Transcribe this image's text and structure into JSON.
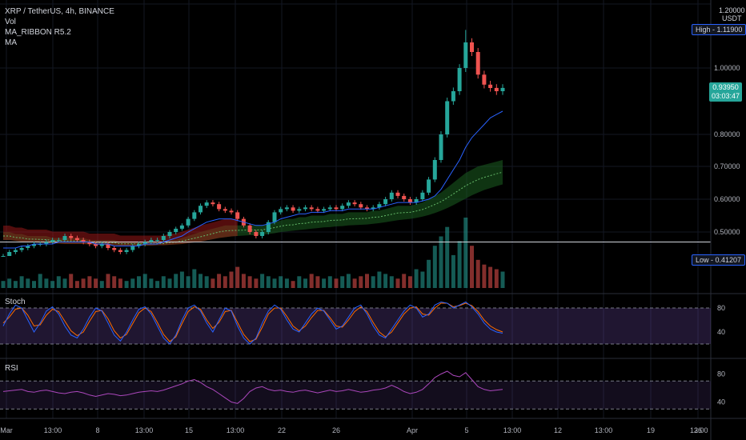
{
  "chart_data": [
    {
      "type": "candlestick",
      "title": "XRP / TetherUS, 4h, BINANCE",
      "indicators": [
        "Vol",
        "MA_RIBBON R5.2",
        "MA"
      ],
      "unit": "USDT",
      "high_label": "High",
      "high_value": "1.11900",
      "low_label": "Low",
      "low_value": "0.41207",
      "last_price": "0.93950",
      "countdown": "03:03:47",
      "horizontal_line": 0.475,
      "y_ticks": [
        "1.20000",
        "1.00000",
        "0.80000",
        "0.70000",
        "0.60000",
        "0.50000"
      ],
      "y_tick_values": [
        1.2,
        1.0,
        0.8,
        0.7,
        0.6,
        0.5
      ],
      "x_ticks": [
        "Mar",
        "13:00",
        "8",
        "13:00",
        "15",
        "13:00",
        "22",
        "26",
        "Apr",
        "5",
        "13:00",
        "12",
        "13:00",
        "19",
        "26",
        "13:00"
      ],
      "close_series": [
        0.44,
        0.45,
        0.455,
        0.46,
        0.465,
        0.47,
        0.47,
        0.475,
        0.48,
        0.48,
        0.49,
        0.485,
        0.48,
        0.475,
        0.47,
        0.465,
        0.47,
        0.46,
        0.455,
        0.45,
        0.455,
        0.465,
        0.47,
        0.475,
        0.48,
        0.48,
        0.49,
        0.5,
        0.51,
        0.52,
        0.54,
        0.56,
        0.58,
        0.59,
        0.585,
        0.57,
        0.565,
        0.56,
        0.54,
        0.52,
        0.5,
        0.49,
        0.5,
        0.53,
        0.56,
        0.57,
        0.575,
        0.565,
        0.57,
        0.575,
        0.57,
        0.565,
        0.57,
        0.575,
        0.57,
        0.58,
        0.59,
        0.585,
        0.575,
        0.57,
        0.575,
        0.585,
        0.6,
        0.62,
        0.61,
        0.6,
        0.59,
        0.6,
        0.62,
        0.66,
        0.72,
        0.8,
        0.9,
        0.93,
        1.0,
        1.08,
        1.05,
        0.98,
        0.95,
        0.94,
        0.93,
        0.94
      ],
      "volume_series": [
        3,
        4,
        3,
        5,
        4,
        3,
        6,
        4,
        3,
        5,
        4,
        6,
        3,
        4,
        5,
        4,
        3,
        6,
        5,
        4,
        3,
        4,
        5,
        6,
        4,
        3,
        5,
        4,
        6,
        7,
        5,
        8,
        6,
        5,
        4,
        6,
        5,
        7,
        9,
        6,
        5,
        4,
        6,
        5,
        4,
        5,
        4,
        3,
        5,
        4,
        6,
        5,
        4,
        5,
        4,
        5,
        6,
        4,
        5,
        6,
        5,
        7,
        6,
        5,
        4,
        6,
        5,
        8,
        7,
        12,
        18,
        22,
        26,
        14,
        20,
        30,
        18,
        12,
        10,
        9,
        8,
        7
      ],
      "ma_series": [
        0.46,
        0.46,
        0.46,
        0.465,
        0.465,
        0.47,
        0.47,
        0.47,
        0.47,
        0.475,
        0.475,
        0.475,
        0.475,
        0.475,
        0.475,
        0.47,
        0.47,
        0.47,
        0.465,
        0.465,
        0.465,
        0.465,
        0.465,
        0.47,
        0.47,
        0.47,
        0.475,
        0.48,
        0.485,
        0.49,
        0.5,
        0.51,
        0.52,
        0.53,
        0.535,
        0.54,
        0.54,
        0.54,
        0.535,
        0.53,
        0.525,
        0.52,
        0.52,
        0.525,
        0.53,
        0.54,
        0.545,
        0.55,
        0.555,
        0.555,
        0.56,
        0.56,
        0.56,
        0.565,
        0.565,
        0.565,
        0.57,
        0.57,
        0.57,
        0.57,
        0.57,
        0.575,
        0.58,
        0.585,
        0.59,
        0.59,
        0.59,
        0.59,
        0.595,
        0.6,
        0.61,
        0.63,
        0.66,
        0.69,
        0.72,
        0.76,
        0.79,
        0.81,
        0.83,
        0.85,
        0.86,
        0.87
      ],
      "ribbon_upper": [
        0.5,
        0.5,
        0.495,
        0.495,
        0.49,
        0.49,
        0.49,
        0.49,
        0.485,
        0.485,
        0.485,
        0.485,
        0.485,
        0.485,
        0.48,
        0.48,
        0.48,
        0.48,
        0.48,
        0.475,
        0.475,
        0.475,
        0.475,
        0.475,
        0.475,
        0.475,
        0.475,
        0.48,
        0.48,
        0.485,
        0.49,
        0.495,
        0.5,
        0.505,
        0.51,
        0.515,
        0.52,
        0.52,
        0.52,
        0.52,
        0.52,
        0.52,
        0.52,
        0.525,
        0.53,
        0.535,
        0.54,
        0.54,
        0.545,
        0.545,
        0.55,
        0.55,
        0.55,
        0.555,
        0.555,
        0.555,
        0.56,
        0.56,
        0.56,
        0.56,
        0.565,
        0.565,
        0.57,
        0.575,
        0.58,
        0.58,
        0.58,
        0.585,
        0.59,
        0.6,
        0.61,
        0.62,
        0.635,
        0.65,
        0.665,
        0.68,
        0.69,
        0.7,
        0.705,
        0.71,
        0.715,
        0.72
      ],
      "ribbon_lower": [
        0.48,
        0.48,
        0.478,
        0.476,
        0.475,
        0.474,
        0.473,
        0.472,
        0.472,
        0.471,
        0.47,
        0.47,
        0.47,
        0.47,
        0.469,
        0.468,
        0.468,
        0.467,
        0.467,
        0.466,
        0.466,
        0.466,
        0.466,
        0.466,
        0.466,
        0.467,
        0.467,
        0.468,
        0.469,
        0.47,
        0.472,
        0.474,
        0.476,
        0.479,
        0.482,
        0.485,
        0.487,
        0.489,
        0.49,
        0.491,
        0.492,
        0.492,
        0.493,
        0.495,
        0.497,
        0.5,
        0.502,
        0.504,
        0.506,
        0.508,
        0.51,
        0.512,
        0.514,
        0.515,
        0.517,
        0.518,
        0.52,
        0.521,
        0.522,
        0.523,
        0.525,
        0.527,
        0.53,
        0.533,
        0.536,
        0.538,
        0.54,
        0.543,
        0.547,
        0.552,
        0.558,
        0.565,
        0.573,
        0.582,
        0.592,
        0.602,
        0.612,
        0.62,
        0.628,
        0.634,
        0.64,
        0.645
      ]
    },
    {
      "type": "line",
      "title": "Stoch",
      "y_ticks": [
        "80",
        "40"
      ],
      "y_tick_values": [
        80,
        40
      ],
      "band": [
        80,
        20
      ],
      "k_series": [
        50,
        70,
        85,
        80,
        60,
        40,
        55,
        75,
        82,
        70,
        50,
        35,
        30,
        45,
        65,
        80,
        75,
        55,
        35,
        25,
        40,
        60,
        78,
        82,
        70,
        50,
        30,
        20,
        35,
        60,
        80,
        85,
        75,
        55,
        40,
        60,
        80,
        75,
        50,
        30,
        20,
        30,
        55,
        75,
        85,
        78,
        60,
        45,
        40,
        55,
        70,
        80,
        75,
        60,
        45,
        50,
        65,
        80,
        85,
        70,
        50,
        35,
        30,
        45,
        60,
        75,
        85,
        80,
        65,
        70,
        85,
        90,
        88,
        80,
        85,
        90,
        82,
        70,
        55,
        45,
        40,
        38
      ],
      "d_series": [
        55,
        65,
        78,
        80,
        68,
        50,
        52,
        68,
        78,
        74,
        58,
        42,
        34,
        40,
        58,
        74,
        76,
        62,
        42,
        30,
        36,
        54,
        72,
        80,
        74,
        56,
        36,
        24,
        32,
        54,
        74,
        82,
        78,
        60,
        46,
        56,
        74,
        76,
        56,
        36,
        24,
        28,
        48,
        70,
        80,
        80,
        66,
        50,
        42,
        50,
        64,
        76,
        76,
        64,
        50,
        48,
        60,
        74,
        82,
        74,
        56,
        40,
        32,
        40,
        55,
        70,
        80,
        82,
        70,
        68,
        80,
        88,
        88,
        82,
        84,
        88,
        84,
        74,
        60,
        50,
        44,
        40
      ]
    },
    {
      "type": "line",
      "title": "RSI",
      "y_ticks": [
        "80",
        "40"
      ],
      "y_tick_values": [
        80,
        40
      ],
      "band": [
        70,
        30
      ],
      "rsi_series": [
        55,
        56,
        57,
        58,
        55,
        54,
        56,
        57,
        55,
        53,
        52,
        54,
        55,
        53,
        50,
        48,
        50,
        52,
        51,
        49,
        50,
        52,
        54,
        55,
        56,
        55,
        57,
        60,
        63,
        66,
        70,
        72,
        68,
        62,
        58,
        52,
        46,
        40,
        38,
        45,
        55,
        60,
        62,
        58,
        56,
        57,
        55,
        54,
        56,
        57,
        55,
        53,
        55,
        57,
        55,
        56,
        58,
        56,
        54,
        55,
        57,
        58,
        60,
        64,
        60,
        55,
        52,
        54,
        58,
        66,
        75,
        80,
        84,
        78,
        76,
        82,
        72,
        62,
        58,
        56,
        57,
        58
      ]
    }
  ]
}
